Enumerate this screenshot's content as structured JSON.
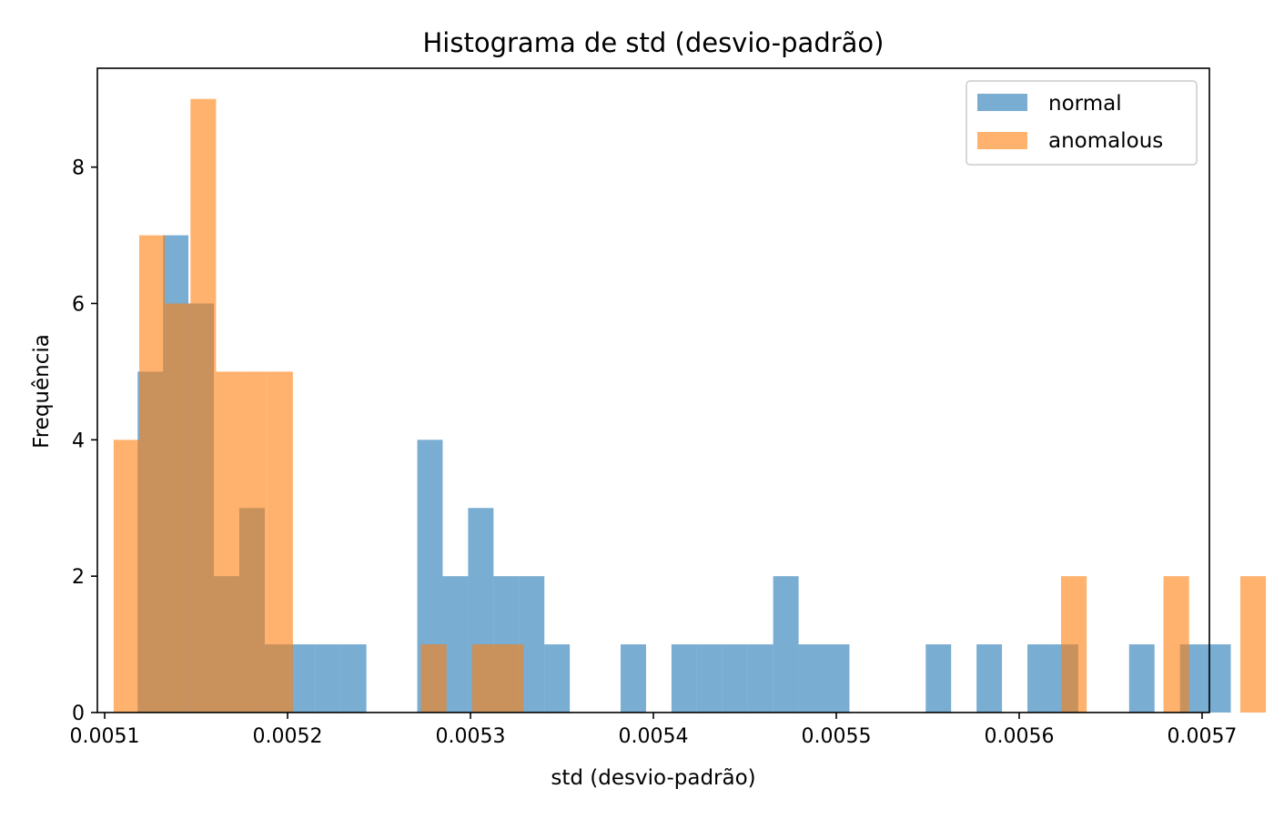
{
  "chart_data": {
    "type": "bar",
    "title": "Histograma de std (desvio-padrão)",
    "xlabel": "std (desvio-padrão)",
    "ylabel": "Frequência",
    "xlim": [
      0.005096,
      0.005704
    ],
    "ylim": [
      0,
      9.45
    ],
    "x_ticks": [
      "0.0051",
      "0.0052",
      "0.0053",
      "0.0054",
      "0.0055",
      "0.0056",
      "0.0057"
    ],
    "x_tick_values": [
      0.0051,
      0.0052,
      0.0053,
      0.0054,
      0.0055,
      0.0056,
      0.0057
    ],
    "y_ticks": [
      "0",
      "2",
      "4",
      "6",
      "8"
    ],
    "y_tick_values": [
      0,
      2,
      4,
      6,
      8
    ],
    "legend_position": "upper right",
    "grid": false,
    "series": [
      {
        "name": "normal",
        "color": "#1f77b4",
        "opacity": 0.6,
        "bin_start": 0.005118,
        "bin_width": 1.39e-05,
        "counts": [
          5,
          7,
          6,
          2,
          3,
          1,
          1,
          1,
          1,
          0,
          0,
          4,
          2,
          3,
          2,
          2,
          1,
          0,
          0,
          1,
          0,
          1,
          1,
          1,
          1,
          2,
          1,
          1,
          0,
          0,
          0,
          1,
          0,
          1,
          0,
          1,
          1,
          0,
          0,
          1,
          0,
          1,
          1
        ]
      },
      {
        "name": "anomalous",
        "color": "#ff7f0e",
        "opacity": 0.6,
        "bin_start": 0.0051049,
        "bin_width": 1.4e-05,
        "counts": [
          4,
          7,
          6,
          9,
          5,
          5,
          5,
          0,
          0,
          0,
          0,
          0,
          1,
          0,
          1,
          1,
          0,
          0,
          0,
          0,
          0,
          0,
          0,
          0,
          0,
          0,
          0,
          0,
          0,
          0,
          0,
          0,
          0,
          0,
          0,
          0,
          0,
          2,
          0,
          0,
          0,
          2,
          0,
          0,
          2
        ]
      }
    ]
  }
}
